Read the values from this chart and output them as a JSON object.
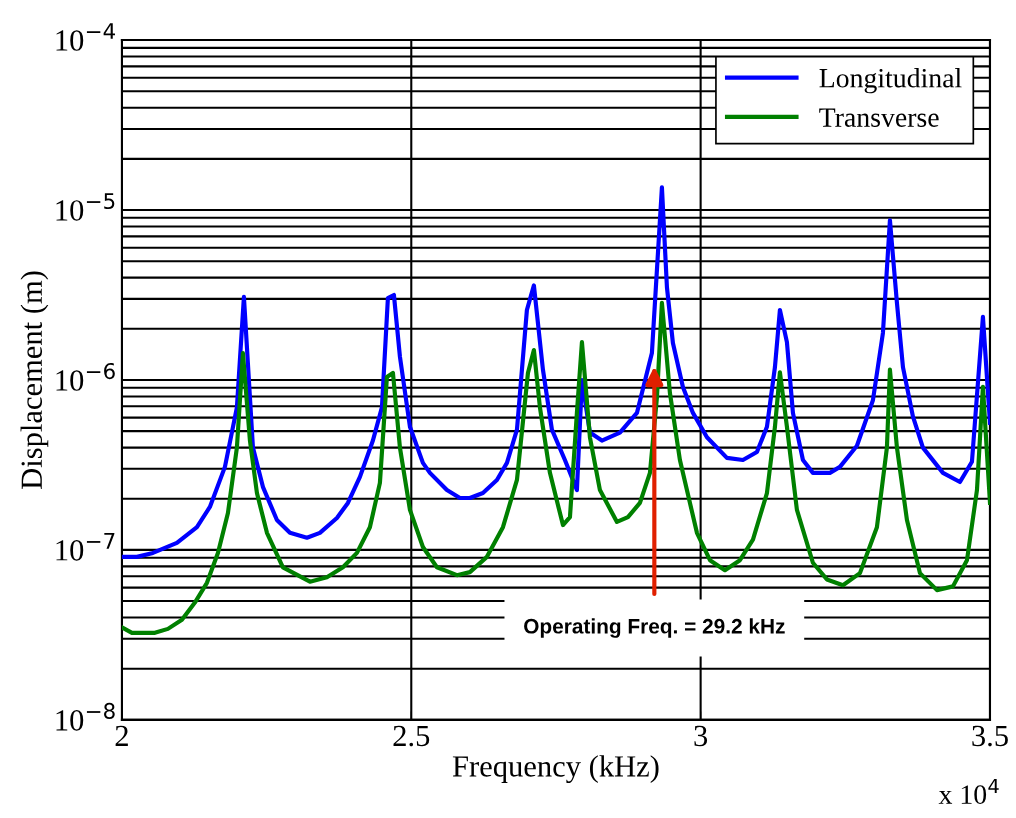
{
  "chart_data": {
    "type": "line",
    "xlabel": "Frequency (kHz)",
    "ylabel": "Displacement (m)",
    "log": "y",
    "grid": true,
    "legend": "top right",
    "line_style": "solid",
    "xlim": [
      2,
      3.5
    ],
    "xticks": [
      2,
      2.5,
      3,
      3.5
    ],
    "ylim": [
      1e-08,
      0.0001
    ],
    "yticks": [
      {
        "value": 1e-08,
        "label": "10$^{−8}$"
      },
      {
        "value": 1e-07,
        "label": "10$^{−7}$"
      },
      {
        "value": 1e-06,
        "label": "10$^{−6}$"
      },
      {
        "value": 1e-05,
        "label": "10$^{−5}$"
      },
      {
        "value": 0.0001,
        "label": "10$^{−4}$"
      }
    ],
    "annotations": [
      {
        "text": "Operating Freq. = 29.2 kHz",
        "x": 2.92,
        "y": 1.2e-06
      },
      "x 10$^{4}$"
    ],
    "series": [
      {
        "name": "Longitudinal",
        "color": "#0000ff",
        "x": [
          2.0,
          2.026,
          2.0536,
          2.095,
          2.1296,
          2.152,
          2.178,
          2.1987,
          2.2108,
          2.2264,
          2.2436,
          2.2678,
          2.2903,
          2.3197,
          2.3421,
          2.3715,
          2.3905,
          2.4113,
          2.4337,
          2.4493,
          2.4596,
          2.47,
          2.4804,
          2.4977,
          2.5201,
          2.5322,
          2.5616,
          2.5841,
          2.6013,
          2.6238,
          2.648,
          2.6653,
          2.6826,
          2.6998,
          2.7119,
          2.7275,
          2.743,
          2.7655,
          2.7862,
          2.7949,
          2.8087,
          2.8294,
          2.8605,
          2.8899,
          2.9158,
          2.9331,
          2.9418,
          2.9521,
          2.9694,
          2.9867,
          3.0109,
          3.0454,
          3.0731,
          3.0973,
          3.1146,
          3.1284,
          3.137,
          3.1491,
          3.1595,
          3.1768,
          3.194,
          3.2234,
          3.2407,
          3.2701,
          3.2977,
          3.315,
          3.3271,
          3.3392,
          3.3496,
          3.3668,
          3.3841,
          3.4187,
          3.4481,
          3.4688,
          3.4878,
          3.5
        ],
        "values": [
          9.1e-08,
          9.1e-08,
          9.6e-08,
          1.1e-07,
          1.36e-07,
          1.79e-07,
          3.08e-07,
          6.9e-07,
          3.08e-06,
          4e-07,
          2.35e-07,
          1.5e-07,
          1.26e-07,
          1.18e-07,
          1.26e-07,
          1.54e-07,
          1.89e-07,
          2.69e-07,
          4.4e-07,
          6.9e-07,
          3.03e-06,
          3.16e-06,
          1.37e-06,
          5.3e-07,
          3.25e-07,
          2.84e-07,
          2.25e-07,
          2.02e-07,
          2.02e-07,
          2.16e-07,
          2.58e-07,
          3.25e-07,
          5.1e-07,
          2.58e-06,
          3.6e-06,
          1.15e-06,
          5.1e-07,
          3.38e-07,
          2.25e-07,
          1e-06,
          4.9e-07,
          4.4e-07,
          4.9e-07,
          6.4e-07,
          1.44e-06,
          1.36e-05,
          3.5e-06,
          1.65e-06,
          9.1e-07,
          6.4e-07,
          4.6e-07,
          3.48e-07,
          3.38e-07,
          3.77e-07,
          5.3e-07,
          1.19e-06,
          2.58e-06,
          1.67e-06,
          6.4e-07,
          3.38e-07,
          2.84e-07,
          2.84e-07,
          3.08e-07,
          4.1e-07,
          7.6e-07,
          1.89e-06,
          8.7e-06,
          2.84e-06,
          1.19e-06,
          6.1e-07,
          4e-07,
          2.84e-07,
          2.51e-07,
          3.3e-07,
          2.35e-06,
          5.6e-07
        ]
      },
      {
        "name": "Transverse",
        "color": "#008000",
        "x": [
          2.0,
          2.0173,
          2.057,
          2.0795,
          2.1037,
          2.1261,
          2.1469,
          2.1659,
          2.1832,
          2.1987,
          2.2091,
          2.2212,
          2.2333,
          2.2506,
          2.2782,
          2.3249,
          2.3542,
          2.3819,
          2.4061,
          2.4285,
          2.4458,
          2.4579,
          2.4683,
          2.4804,
          2.4977,
          2.5201,
          2.5443,
          2.5789,
          2.6013,
          2.6307,
          2.6584,
          2.6826,
          2.7016,
          2.7119,
          2.7223,
          2.7396,
          2.7621,
          2.7742,
          2.7862,
          2.7949,
          2.8087,
          2.826,
          2.8554,
          2.8744,
          2.8951,
          2.9124,
          2.9245,
          2.9331,
          2.9469,
          2.9642,
          2.9936,
          3.0161,
          3.042,
          3.0679,
          3.0904,
          3.1146,
          3.1284,
          3.137,
          3.1491,
          3.1664,
          3.194,
          3.2182,
          3.2459,
          3.2753,
          3.3046,
          3.3219,
          3.3271,
          3.3392,
          3.3565,
          3.379,
          3.4084,
          3.436,
          3.4602,
          3.4775,
          3.4878,
          3.5
        ],
        "values": [
          3.5e-08,
          3.25e-08,
          3.25e-08,
          3.43e-08,
          3.88e-08,
          4.9e-08,
          6.4e-08,
          9.6e-08,
          1.65e-07,
          4e-07,
          1.44e-06,
          4.4e-07,
          2.16e-07,
          1.26e-07,
          7.9e-08,
          6.5e-08,
          6.9e-08,
          7.9e-08,
          9.6e-08,
          1.36e-07,
          2.48e-07,
          1.04e-06,
          1.1e-06,
          4e-07,
          1.72e-07,
          1.04e-07,
          7.9e-08,
          7.1e-08,
          7.4e-08,
          9.1e-08,
          1.36e-07,
          2.58e-07,
          1.1e-06,
          1.5e-06,
          6.9e-07,
          2.84e-07,
          1.4e-07,
          1.56e-07,
          6.4e-07,
          1.67e-06,
          4.6e-07,
          2.25e-07,
          1.46e-07,
          1.56e-07,
          1.89e-07,
          2.84e-07,
          7.9e-07,
          2.84e-06,
          8.4e-07,
          3.38e-07,
          1.26e-07,
          8.7e-08,
          7.6e-08,
          8.7e-08,
          1.15e-07,
          2.16e-07,
          5.3e-07,
          1.11e-06,
          5.3e-07,
          1.72e-07,
          8.4e-08,
          6.7e-08,
          6.2e-08,
          7.3e-08,
          1.36e-07,
          4e-07,
          1.15e-06,
          4e-07,
          1.5e-07,
          7.3e-08,
          5.8e-08,
          6.1e-08,
          8.7e-08,
          2.25e-07,
          9.1e-07,
          1.89e-07
        ]
      }
    ]
  }
}
